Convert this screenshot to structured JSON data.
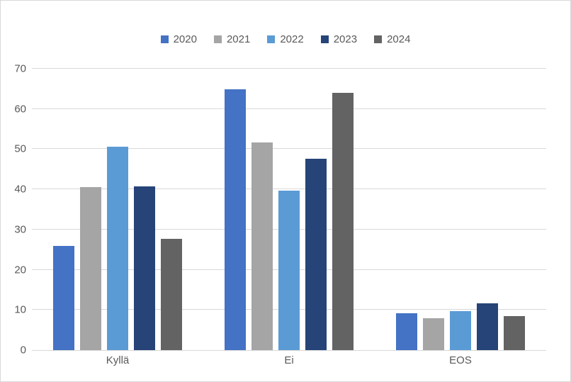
{
  "chart_data": {
    "type": "bar",
    "title": "",
    "xlabel": "",
    "ylabel": "",
    "categories": [
      "Kyllä",
      "Ei",
      "EOS"
    ],
    "series": [
      {
        "name": "2020",
        "color": "#4472c4",
        "values": [
          26.0,
          64.9,
          9.2
        ]
      },
      {
        "name": "2021",
        "color": "#a5a5a5",
        "values": [
          40.5,
          51.7,
          8.0
        ]
      },
      {
        "name": "2022",
        "color": "#5b9bd5",
        "values": [
          50.7,
          39.6,
          9.7
        ]
      },
      {
        "name": "2023",
        "color": "#264478",
        "values": [
          40.7,
          47.7,
          11.7
        ]
      },
      {
        "name": "2024",
        "color": "#636363",
        "values": [
          27.7,
          64.1,
          8.5
        ]
      }
    ],
    "ylim": [
      0,
      70
    ],
    "yticks": [
      0,
      10,
      20,
      30,
      40,
      50,
      60,
      70
    ],
    "grid": true,
    "legend_position": "top-center"
  },
  "colors": {
    "background": "#ffffff",
    "border": "#d9d9d9",
    "gridline": "#d9d9d9",
    "axis_text": "#595959"
  }
}
